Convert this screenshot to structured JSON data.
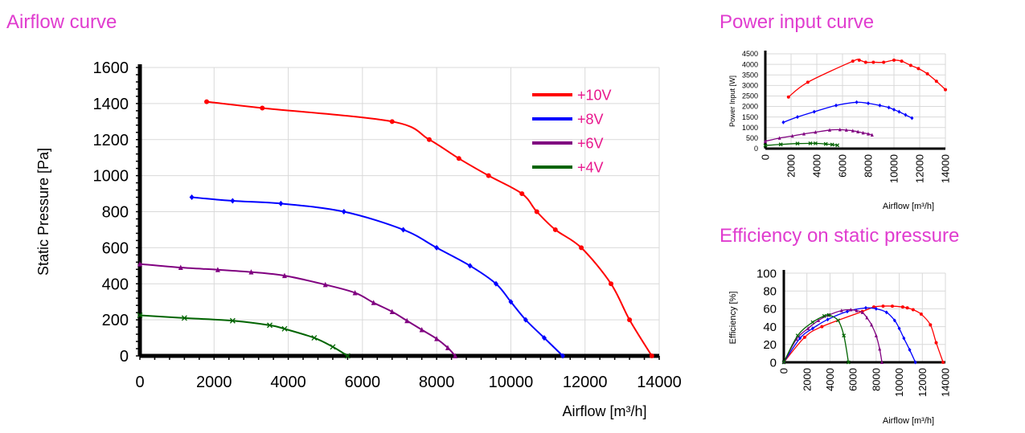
{
  "titles": {
    "airflow": "Airflow curve",
    "power": "Power input curve",
    "efficiency": "Efficiency on static pressure"
  },
  "colors": {
    "title": "#e03ccf",
    "legend_text": "#e8168c",
    "axis": "#000000",
    "grid": "#d9d9d9"
  },
  "chart_data": [
    {
      "id": "airflow",
      "type": "line",
      "title": "Airflow curve",
      "xlabel": "Airflow [m³/h]",
      "ylabel": "Static Pressure [Pa]",
      "xlim": [
        0,
        14000
      ],
      "ylim": [
        0,
        1600
      ],
      "xticks": [
        0,
        2000,
        4000,
        6000,
        8000,
        10000,
        12000,
        14000
      ],
      "yticks": [
        0,
        200,
        400,
        600,
        800,
        1000,
        1200,
        1400,
        1600
      ],
      "grid": true,
      "legend": "top-right",
      "series": [
        {
          "name": "+10V",
          "color": "#ff0000",
          "marker": "circle",
          "x": [
            1800,
            3300,
            6800,
            7800,
            8600,
            9400,
            10300,
            10700,
            11200,
            11900,
            12700,
            13200,
            13800
          ],
          "y": [
            1410,
            1375,
            1300,
            1200,
            1095,
            1000,
            900,
            800,
            700,
            600,
            400,
            200,
            0
          ]
        },
        {
          "name": "+8V",
          "color": "#0000ff",
          "marker": "diamond",
          "x": [
            1400,
            2500,
            3800,
            5500,
            7100,
            8000,
            8900,
            9600,
            10000,
            10400,
            10900,
            11400
          ],
          "y": [
            880,
            860,
            845,
            800,
            700,
            600,
            500,
            400,
            300,
            200,
            100,
            0
          ]
        },
        {
          "name": "+6V",
          "color": "#800080",
          "marker": "triangle",
          "x": [
            0,
            1100,
            2100,
            3000,
            3900,
            5000,
            5800,
            6300,
            6800,
            7200,
            7600,
            8000,
            8300,
            8500
          ],
          "y": [
            510,
            490,
            478,
            465,
            445,
            395,
            350,
            295,
            245,
            195,
            145,
            95,
            45,
            0
          ]
        },
        {
          "name": "+4V",
          "color": "#006400",
          "marker": "cross",
          "x": [
            0,
            1200,
            2500,
            3500,
            3900,
            4700,
            5200,
            5600
          ],
          "y": [
            225,
            210,
            195,
            170,
            150,
            100,
            50,
            0
          ]
        }
      ]
    },
    {
      "id": "power",
      "type": "line",
      "title": "Power input curve",
      "xlabel": "Airflow [m³/h]",
      "ylabel": "Power Input [W]",
      "xlim": [
        0,
        14000
      ],
      "ylim": [
        0,
        4500
      ],
      "xticks": [
        0,
        2000,
        4000,
        6000,
        8000,
        10000,
        12000,
        14000
      ],
      "yticks": [
        0,
        500,
        1000,
        1500,
        2000,
        2500,
        3000,
        3500,
        4000,
        4500
      ],
      "grid": true,
      "series": [
        {
          "color": "#ff0000",
          "marker": "circle",
          "x": [
            1800,
            3300,
            6800,
            7300,
            7800,
            8400,
            9200,
            10000,
            10600,
            11300,
            11900,
            12600,
            13300,
            14000
          ],
          "y": [
            2450,
            3150,
            4150,
            4200,
            4100,
            4100,
            4100,
            4200,
            4150,
            3950,
            3800,
            3550,
            3200,
            2800
          ]
        },
        {
          "color": "#0000ff",
          "marker": "diamond",
          "x": [
            1400,
            2500,
            3800,
            5500,
            7100,
            8000,
            8900,
            9600,
            10000,
            10400,
            10900,
            11400
          ],
          "y": [
            1250,
            1500,
            1750,
            2050,
            2200,
            2150,
            2050,
            1950,
            1850,
            1750,
            1600,
            1450
          ]
        },
        {
          "color": "#800080",
          "marker": "triangle",
          "x": [
            0,
            1100,
            2100,
            3000,
            3900,
            5000,
            5800,
            6300,
            6800,
            7200,
            7600,
            8000,
            8300
          ],
          "y": [
            350,
            500,
            600,
            700,
            780,
            880,
            900,
            880,
            850,
            800,
            750,
            700,
            650
          ]
        },
        {
          "color": "#006400",
          "marker": "cross",
          "x": [
            0,
            1200,
            2500,
            3500,
            3900,
            4700,
            5200,
            5600
          ],
          "y": [
            150,
            200,
            240,
            250,
            250,
            220,
            190,
            160
          ]
        }
      ]
    },
    {
      "id": "efficiency",
      "type": "line",
      "title": "Efficiency on static pressure",
      "xlabel": "Airflow [m³/h]",
      "ylabel": "Efficiency [%]",
      "xlim": [
        0,
        14000
      ],
      "ylim": [
        0,
        100
      ],
      "xticks": [
        0,
        2000,
        4000,
        6000,
        8000,
        10000,
        12000,
        14000
      ],
      "yticks": [
        0,
        20,
        40,
        60,
        80,
        100
      ],
      "grid": true,
      "series": [
        {
          "color": "#ff0000",
          "marker": "circle",
          "x": [
            0,
            1800,
            3300,
            6800,
            7800,
            8600,
            9400,
            10300,
            10700,
            11200,
            11900,
            12700,
            13200,
            13800
          ],
          "y": [
            0,
            28,
            40,
            57,
            62,
            63,
            63,
            62,
            61,
            59,
            54,
            42,
            22,
            0
          ]
        },
        {
          "color": "#0000ff",
          "marker": "diamond",
          "x": [
            0,
            1400,
            2500,
            3800,
            5500,
            7100,
            8000,
            8900,
            9600,
            10000,
            10400,
            10900,
            11400
          ],
          "y": [
            0,
            27,
            38,
            48,
            57,
            61,
            60,
            56,
            47,
            38,
            27,
            14,
            0
          ]
        },
        {
          "color": "#800080",
          "marker": "triangle",
          "x": [
            0,
            1100,
            2100,
            3000,
            3900,
            5000,
            5800,
            6300,
            6800,
            7200,
            7600,
            8000,
            8300,
            8500
          ],
          "y": [
            0,
            26,
            38,
            47,
            53,
            58,
            59,
            58,
            56,
            50,
            42,
            30,
            15,
            0
          ]
        },
        {
          "color": "#006400",
          "marker": "cross",
          "x": [
            0,
            1200,
            2500,
            3500,
            3900,
            4700,
            5200,
            5600
          ],
          "y": [
            0,
            30,
            45,
            52,
            53,
            47,
            30,
            0
          ]
        }
      ]
    }
  ]
}
